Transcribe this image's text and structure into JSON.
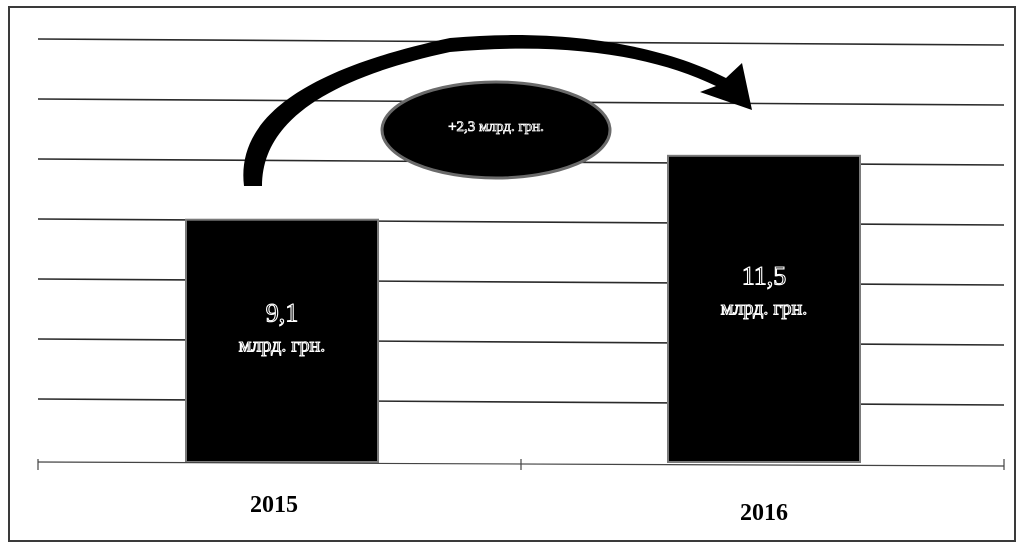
{
  "chart_data": {
    "type": "bar",
    "categories": [
      "2015",
      "2016"
    ],
    "values": [
      9.1,
      11.5
    ],
    "data_labels": [
      {
        "value": "9,1",
        "unit": "млрд. грн."
      },
      {
        "value": "11,5",
        "unit": "млрд. грн."
      }
    ],
    "annotation": "+2,3 млрд. грн.",
    "ylim": [
      0,
      16
    ],
    "grid": true,
    "legend": "none",
    "title": "",
    "xlabel": "",
    "ylabel": "",
    "colors": {
      "bar": "#000000",
      "grid": "#2a2a2a",
      "arrow": "#000000",
      "ellipse": "#000000"
    }
  }
}
